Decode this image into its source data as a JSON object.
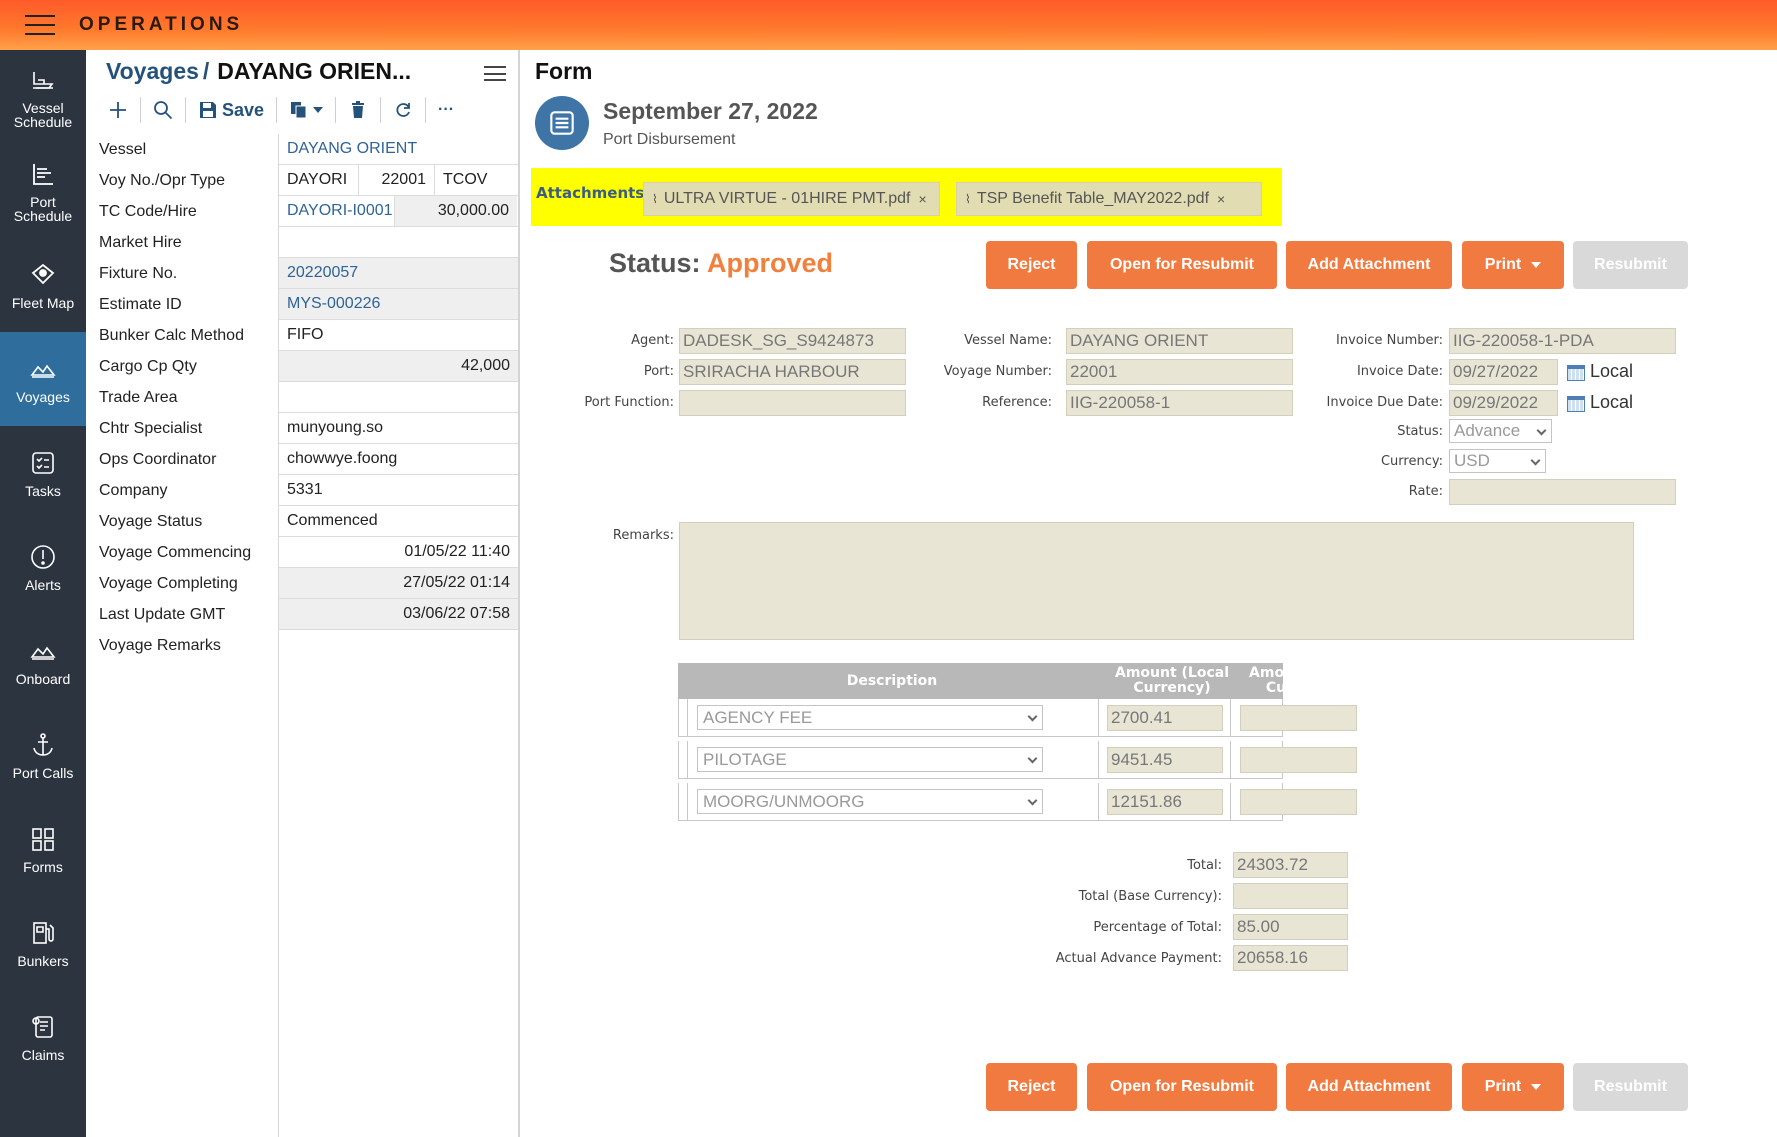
{
  "app": {
    "title": "OPERATIONS"
  },
  "nav": [
    {
      "label": "Vessel\nSchedule",
      "icon": "ship-icon"
    },
    {
      "label": "Port\nSchedule",
      "icon": "gantt-icon"
    },
    {
      "label": "Fleet Map",
      "icon": "map-pin-icon"
    },
    {
      "label": "Voyages",
      "icon": "voyage-icon"
    },
    {
      "label": "Tasks",
      "icon": "checklist-icon"
    },
    {
      "label": "Alerts",
      "icon": "alert-icon"
    },
    {
      "label": "Onboard",
      "icon": "onboard-icon"
    },
    {
      "label": "Port Calls",
      "icon": "anchor-icon"
    },
    {
      "label": "Forms",
      "icon": "forms-icon"
    },
    {
      "label": "Bunkers",
      "icon": "fuel-pump-icon"
    },
    {
      "label": "Claims",
      "icon": "claims-icon"
    }
  ],
  "voyage_panel": {
    "crumb_root": "Voyages",
    "crumb_sep": "/",
    "crumb_vessel": "DAYANG ORIEN...",
    "toolbar": {
      "save_label": "Save",
      "more_label": "···"
    },
    "fields": {
      "vessel": {
        "label": "Vessel",
        "value": "DAYANG ORIENT"
      },
      "voy_no": {
        "label": "Voy No./Opr Type",
        "voy": "DAYORI",
        "no": "22001",
        "type": "TCOV"
      },
      "tc_code": {
        "label": "TC Code/Hire",
        "code": "DAYORI-I0001",
        "hire": "30,000.00"
      },
      "market_hire": {
        "label": "Market Hire",
        "value": ""
      },
      "fixture": {
        "label": "Fixture No.",
        "value": "20220057"
      },
      "estimate": {
        "label": "Estimate ID",
        "value": "MYS-000226"
      },
      "bunker_calc": {
        "label": "Bunker Calc Method",
        "value": "FIFO"
      },
      "cargo_qty": {
        "label": "Cargo Cp Qty",
        "value": "42,000"
      },
      "trade_area": {
        "label": "Trade Area",
        "value": ""
      },
      "chtr": {
        "label": "Chtr Specialist",
        "value": "munyoung.so"
      },
      "ops": {
        "label": "Ops Coordinator",
        "value": "chowwye.foong"
      },
      "company": {
        "label": "Company",
        "value": "5331"
      },
      "voy_status": {
        "label": "Voyage Status",
        "value": "Commenced"
      },
      "commencing": {
        "label": "Voyage Commencing",
        "value": "01/05/22 11:40"
      },
      "completing": {
        "label": "Voyage Completing",
        "value": "27/05/22 01:14"
      },
      "last_update": {
        "label": "Last Update GMT",
        "value": "03/06/22 07:58"
      },
      "remarks": {
        "label": "Voyage Remarks",
        "value": ""
      }
    }
  },
  "form": {
    "title": "Form",
    "date": "September 27, 2022",
    "subtitle": "Port Disbursement",
    "attachments_label": "Attachments:",
    "attachments": [
      "ULTRA VIRTUE - 01HIRE PMT.pdf",
      "TSP Benefit Table_MAY2022.pdf"
    ],
    "status_label": "Status:",
    "status_value": "Approved",
    "buttons": {
      "reject": "Reject",
      "resubmit_open": "Open for Resubmit",
      "add_attachment": "Add Attachment",
      "print": "Print",
      "resubmit": "Resubmit"
    },
    "fields": {
      "agent": {
        "label": "Agent:",
        "value": "DADESK_SG_S9424873"
      },
      "port": {
        "label": "Port:",
        "value": "SRIRACHA HARBOUR"
      },
      "port_function": {
        "label": "Port Function:",
        "value": ""
      },
      "vessel_name": {
        "label": "Vessel Name:",
        "value": "DAYANG ORIENT"
      },
      "voyage_number": {
        "label": "Voyage Number:",
        "value": "22001"
      },
      "reference": {
        "label": "Reference:",
        "value": "IIG-220058-1"
      },
      "invoice_number": {
        "label": "Invoice Number:",
        "value": "IIG-220058-1-PDA"
      },
      "invoice_date": {
        "label": "Invoice Date:",
        "value": "09/27/2022",
        "tz": "Local"
      },
      "invoice_due": {
        "label": "Invoice Due Date:",
        "value": "09/29/2022",
        "tz": "Local"
      },
      "status": {
        "label": "Status:",
        "value": "Advance"
      },
      "currency": {
        "label": "Currency:",
        "value": "USD"
      },
      "rate": {
        "label": "Rate:",
        "value": ""
      },
      "remarks": {
        "label": "Remarks:",
        "value": ""
      }
    },
    "table": {
      "headers": {
        "description": "Description",
        "local": "Amount (Local Currency)",
        "base": "Amount (Base Currency)"
      },
      "rows": [
        {
          "description": "AGENCY FEE",
          "local": "2700.41",
          "base": ""
        },
        {
          "description": "PILOTAGE",
          "local": "9451.45",
          "base": ""
        },
        {
          "description": "MOORG/UNMOORG",
          "local": "12151.86",
          "base": ""
        }
      ]
    },
    "totals": {
      "total": {
        "label": "Total:",
        "value": "24303.72"
      },
      "total_base": {
        "label": "Total (Base Currency):",
        "value": ""
      },
      "percentage": {
        "label": "Percentage of Total:",
        "value": "85.00"
      },
      "advance": {
        "label": "Actual Advance Payment:",
        "value": "20658.16"
      }
    }
  },
  "colors": {
    "accent": "#f07a3f",
    "nav_bg": "#2c3440",
    "nav_active": "#2f6e9c",
    "link": "#25527a",
    "highlight": "#ffff00"
  }
}
